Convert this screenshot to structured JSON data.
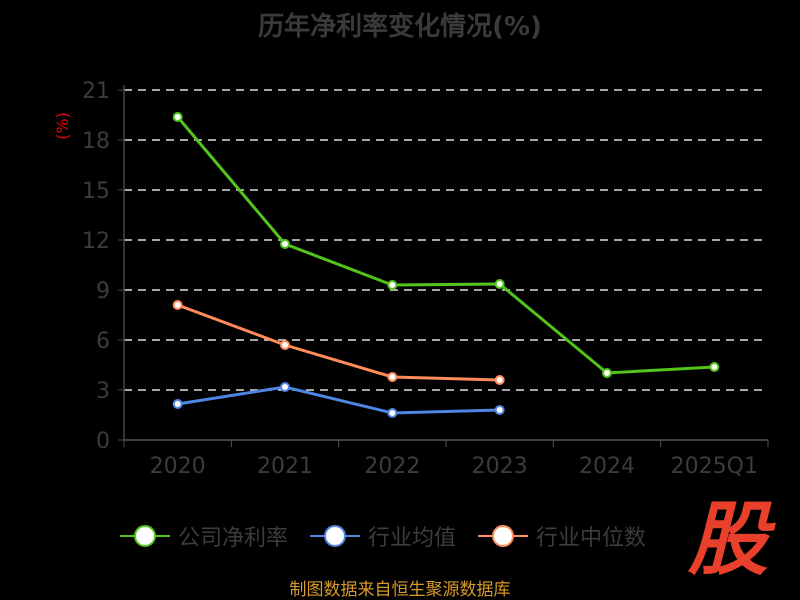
{
  "chart_data": {
    "type": "line",
    "title": "历年净利率变化情况(%)",
    "ylabel": "(%)",
    "xlabel": "",
    "categories": [
      "2020",
      "2021",
      "2022",
      "2023",
      "2024",
      "2025Q1"
    ],
    "ylim": [
      0,
      21
    ],
    "yticks": [
      0,
      3,
      6,
      9,
      12,
      15,
      18,
      21
    ],
    "grid": true,
    "legend_position": "bottom",
    "series": [
      {
        "name": "公司净利率",
        "color": "#52c41a",
        "values": [
          19.38,
          11.76,
          9.3,
          9.36,
          4.02,
          4.38
        ]
      },
      {
        "name": "行业均值",
        "color": "#4e86e6",
        "values": [
          2.16,
          3.18,
          1.62,
          1.8,
          null,
          null
        ]
      },
      {
        "name": "行业中位数",
        "color": "#ff8c5a",
        "values": [
          8.1,
          5.7,
          3.78,
          3.6,
          null,
          null
        ]
      }
    ]
  },
  "source": "制图数据来自恒生聚源数据库",
  "logo": "股"
}
